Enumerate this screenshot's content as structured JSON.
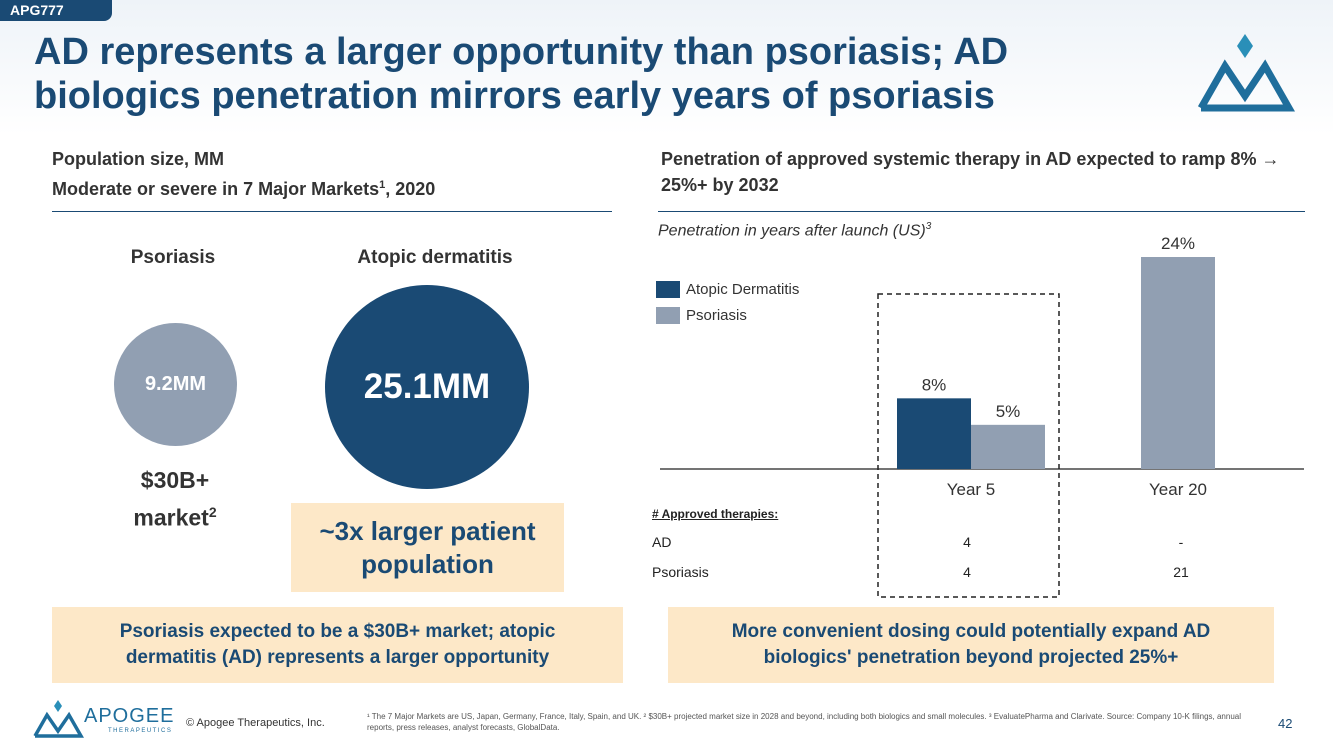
{
  "tag": "APG777",
  "title": "AD represents a larger opportunity than psoriasis; AD biologics penetration mirrors early years of psoriasis",
  "left": {
    "heading_line1": "Population size, MM",
    "heading_line2_pre": "Moderate or severe in 7 Major Markets",
    "heading_line2_sup": "1",
    "heading_line2_post": ", 2020",
    "psoriasis_label": "Psoriasis",
    "ad_label": "Atopic dermatitis",
    "psoriasis_value": "9.2MM",
    "ad_value": "25.1MM",
    "market_line1": "$30B+",
    "market_line2": "market",
    "market_sup": "2",
    "larger_callout": "~3x larger patient population",
    "bottom_callout": "Psoriasis expected to be a $30B+ market; atopic dermatitis (AD) represents a larger opportunity"
  },
  "right": {
    "heading": "Penetration of approved systemic therapy in AD expected to ramp 8% → 25%+ by 2032",
    "bottom_callout": "More convenient dosing could potentially expand AD biologics' penetration beyond projected 25%+"
  },
  "chart_data": {
    "type": "bar",
    "title": "Penetration in years after launch (US)",
    "title_sup": "3",
    "categories": [
      "Year 5",
      "Year 20"
    ],
    "series": [
      {
        "name": "Atopic Dermatitis",
        "values": [
          8,
          null
        ],
        "labels": [
          "8%",
          ""
        ],
        "color": "#1a4a74"
      },
      {
        "name": "Psoriasis",
        "values": [
          5,
          24
        ],
        "labels": [
          "5%",
          "24%"
        ],
        "color": "#919fb2"
      }
    ],
    "ylim": [
      0,
      24
    ],
    "grid": false,
    "legend": "top-left"
  },
  "table": {
    "header": "# Approved therapies:",
    "rows": [
      {
        "label": "AD",
        "year5": "4",
        "year20": "-"
      },
      {
        "label": "Psoriasis",
        "year5": "4",
        "year20": "21"
      }
    ]
  },
  "footer": {
    "brand_name": "APOGEE",
    "brand_sub": "THERAPEUTICS",
    "copyright": "© Apogee Therapeutics, Inc.",
    "footnote": "¹ The 7 Major Markets are US, Japan, Germany, France, Italy, Spain, and UK.  ² $30B+ projected market size in 2028 and beyond, including both biologics and small molecules. ³ EvaluatePharma and Clarivate.  Source: Company 10-K filings, annual reports, press releases, analyst forecasts, GlobalData.",
    "page": "42"
  },
  "colors": {
    "navy": "#1a4a74",
    "gray": "#919fb2",
    "callout_bg": "#fde8c8",
    "logo_teal": "#2a8fb8"
  }
}
